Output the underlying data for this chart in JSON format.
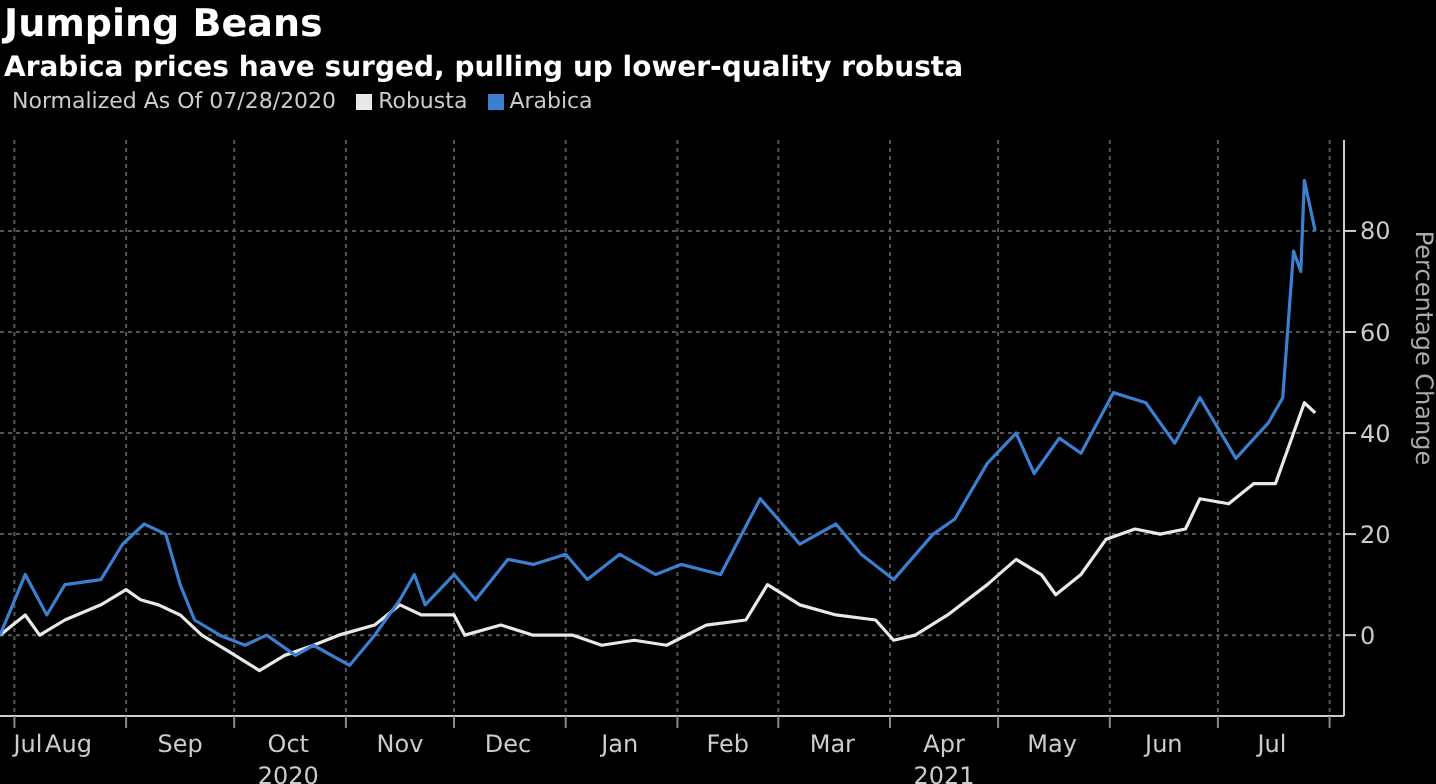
{
  "chart_data": {
    "type": "line",
    "title": "Jumping Beans",
    "subtitle": "Arabica prices have surged, pulling up lower-quality robusta",
    "legend_title": "Normalized As Of 07/28/2020",
    "ylabel": "Percentage Change",
    "legend": "top left",
    "grid": true,
    "marker": "none",
    "line_style": "solid",
    "xlim": [
      "2020-07-28",
      "2021-08-05"
    ],
    "ylim": [
      -16,
      98
    ],
    "yticks": [
      0,
      20,
      40,
      60,
      80
    ],
    "xticks": [
      {
        "value": "2020-07-31",
        "label": "Jul"
      },
      {
        "value": "2020-08-01",
        "label": null
      },
      {
        "value": "2020-08-16",
        "label": "Aug"
      },
      {
        "value": "2020-09-01",
        "label": null
      },
      {
        "value": "2020-09-16",
        "label": "Sep"
      },
      {
        "value": "2020-10-01",
        "label": null
      },
      {
        "value": "2020-10-16",
        "label": "Oct\n2020"
      },
      {
        "value": "2020-11-01",
        "label": null
      },
      {
        "value": "2020-11-16",
        "label": "Nov"
      },
      {
        "value": "2020-12-01",
        "label": null
      },
      {
        "value": "2020-12-16",
        "label": "Dec"
      },
      {
        "value": "2021-01-01",
        "label": null
      },
      {
        "value": "2021-01-16",
        "label": "Jan"
      },
      {
        "value": "2021-02-01",
        "label": null
      },
      {
        "value": "2021-02-15",
        "label": "Feb"
      },
      {
        "value": "2021-03-01",
        "label": null
      },
      {
        "value": "2021-03-16",
        "label": "Mar"
      },
      {
        "value": "2021-04-01",
        "label": null
      },
      {
        "value": "2021-04-16",
        "label": "Apr\n2021"
      },
      {
        "value": "2021-05-01",
        "label": null
      },
      {
        "value": "2021-05-16",
        "label": "May"
      },
      {
        "value": "2021-06-01",
        "label": null
      },
      {
        "value": "2021-06-16",
        "label": "Jun"
      },
      {
        "value": "2021-07-01",
        "label": null
      },
      {
        "value": "2021-07-16",
        "label": "Jul"
      },
      {
        "value": "2021-08-01",
        "label": null
      }
    ],
    "series": [
      {
        "name": "Robusta",
        "color": "#e8e8e8",
        "x": [
          "2020-07-28",
          "2020-08-04",
          "2020-08-08",
          "2020-08-15",
          "2020-08-25",
          "2020-09-01",
          "2020-09-05",
          "2020-09-10",
          "2020-09-16",
          "2020-09-22",
          "2020-09-29",
          "2020-10-08",
          "2020-10-15",
          "2020-10-23",
          "2020-10-30",
          "2020-11-09",
          "2020-11-16",
          "2020-11-22",
          "2020-12-01",
          "2020-12-04",
          "2020-12-14",
          "2020-12-23",
          "2021-01-03",
          "2021-01-11",
          "2021-01-20",
          "2021-01-29",
          "2021-02-09",
          "2021-02-20",
          "2021-02-26",
          "2021-03-07",
          "2021-03-17",
          "2021-03-28",
          "2021-04-02",
          "2021-04-08",
          "2021-04-17",
          "2021-04-28",
          "2021-05-06",
          "2021-05-13",
          "2021-05-17",
          "2021-05-24",
          "2021-05-31",
          "2021-06-08",
          "2021-06-15",
          "2021-06-22",
          "2021-06-26",
          "2021-07-04",
          "2021-07-11",
          "2021-07-17",
          "2021-07-22",
          "2021-07-25",
          "2021-07-28"
        ],
        "values": [
          0,
          4,
          0,
          3,
          6,
          9,
          7,
          6,
          4,
          0,
          -3,
          -7,
          -4,
          -2,
          0,
          2,
          6,
          4,
          4,
          0,
          2,
          0,
          0,
          -2,
          -1,
          -2,
          2,
          3,
          10,
          6,
          4,
          3,
          -1,
          0,
          4,
          10,
          15,
          12,
          8,
          12,
          19,
          21,
          20,
          21,
          27,
          26,
          30,
          30,
          40,
          46,
          44
        ]
      },
      {
        "name": "Arabica",
        "color": "#3b7fd0",
        "x": [
          "2020-07-28",
          "2020-08-04",
          "2020-08-10",
          "2020-08-15",
          "2020-08-25",
          "2020-08-31",
          "2020-09-06",
          "2020-09-12",
          "2020-09-16",
          "2020-09-20",
          "2020-09-27",
          "2020-10-04",
          "2020-10-10",
          "2020-10-18",
          "2020-10-23",
          "2020-11-02",
          "2020-11-09",
          "2020-11-16",
          "2020-11-20",
          "2020-11-23",
          "2020-12-01",
          "2020-12-07",
          "2020-12-16",
          "2020-12-23",
          "2021-01-01",
          "2021-01-07",
          "2021-01-16",
          "2021-01-26",
          "2021-02-02",
          "2021-02-13",
          "2021-02-24",
          "2021-03-07",
          "2021-03-17",
          "2021-03-24",
          "2021-04-02",
          "2021-04-13",
          "2021-04-19",
          "2021-04-28",
          "2021-05-06",
          "2021-05-11",
          "2021-05-18",
          "2021-05-24",
          "2021-06-02",
          "2021-06-11",
          "2021-06-19",
          "2021-06-26",
          "2021-07-06",
          "2021-07-15",
          "2021-07-19",
          "2021-07-22",
          "2021-07-24",
          "2021-07-25",
          "2021-07-28"
        ],
        "values": [
          0,
          12,
          4,
          10,
          11,
          18,
          22,
          20,
          10,
          3,
          0,
          -2,
          0,
          -4,
          -2,
          -6,
          0,
          7,
          12,
          6,
          12,
          7,
          15,
          14,
          16,
          11,
          16,
          12,
          14,
          12,
          27,
          18,
          22,
          16,
          11,
          20,
          23,
          34,
          40,
          32,
          39,
          36,
          48,
          46,
          38,
          47,
          35,
          42,
          47,
          76,
          72,
          90,
          80
        ]
      }
    ]
  }
}
